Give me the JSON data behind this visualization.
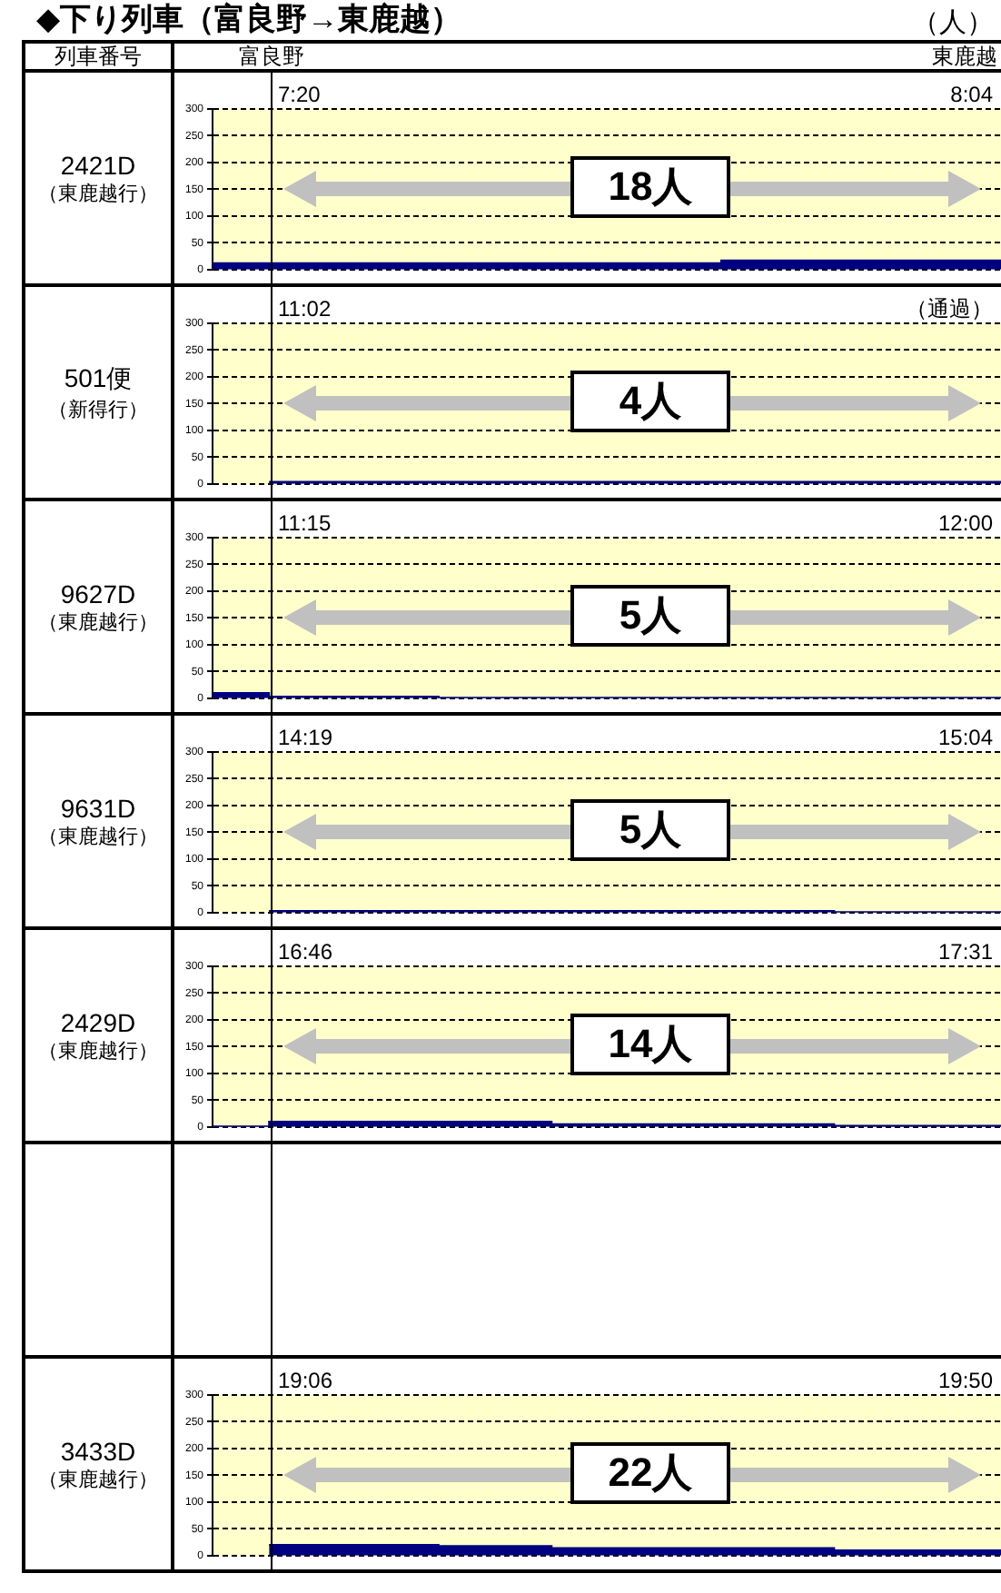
{
  "chart_data": [
    {
      "type": "other",
      "title": "◆下り列車（富良野→東鹿越）",
      "annotations": [
        "（人）",
        "列車番号",
        "富良野",
        "東鹿越"
      ]
    },
    {
      "type": "area",
      "title": "2421D",
      "subtitle": "（東鹿越行）",
      "categories": [
        null,
        null,
        null,
        null,
        null,
        null,
        null,
        null,
        null,
        null,
        null,
        null,
        null,
        null,
        null
      ],
      "series": [
        {
          "color": "#000080",
          "values": [
            12,
            12,
            12,
            12,
            12,
            12,
            12,
            12,
            12,
            17,
            17,
            17,
            17,
            17,
            17
          ]
        }
      ],
      "ylim": [
        0,
        300
      ],
      "yticks": [
        0,
        50,
        100,
        150,
        200,
        250,
        300
      ],
      "grid": "y",
      "tick_labels": "y",
      "annotations": [
        "7:20",
        "8:04",
        "18人"
      ]
    },
    {
      "type": "area",
      "title": "501便",
      "subtitle": "（新得行）",
      "categories": [
        null,
        null,
        null,
        null,
        null,
        null,
        null,
        null,
        null,
        null,
        null,
        null,
        null,
        null,
        null
      ],
      "series": [
        {
          "color": "#000080",
          "values": [
            null,
            4,
            4,
            4,
            4,
            4,
            4,
            4,
            4,
            4,
            4,
            4,
            4,
            4,
            4
          ]
        }
      ],
      "ylim": [
        0,
        300
      ],
      "yticks": [
        0,
        50,
        100,
        150,
        200,
        250,
        300
      ],
      "grid": "y",
      "tick_labels": "y",
      "annotations": [
        "11:02",
        "（通過）",
        "4人"
      ]
    },
    {
      "type": "area",
      "title": "9627D",
      "subtitle": "（東鹿越行）",
      "categories": [
        null,
        null,
        null,
        null,
        null,
        null,
        null,
        null,
        null,
        null,
        null,
        null,
        null,
        null,
        null
      ],
      "series": [
        {
          "color": "#000080",
          "values": [
            10,
            3,
            3,
            3,
            1,
            1,
            1,
            1,
            1,
            1,
            1,
            1,
            1,
            1,
            1
          ]
        }
      ],
      "ylim": [
        0,
        300
      ],
      "yticks": [
        0,
        50,
        100,
        150,
        200,
        250,
        300
      ],
      "grid": "y",
      "tick_labels": "y",
      "annotations": [
        "11:15",
        "12:00",
        "5人"
      ]
    },
    {
      "type": "area",
      "title": "9631D",
      "subtitle": "（東鹿越行）",
      "categories": [
        null,
        null,
        null,
        null,
        null,
        null,
        null,
        null,
        null,
        null,
        null,
        null,
        null,
        null,
        null
      ],
      "series": [
        {
          "color": "#000080",
          "values": [
            null,
            3,
            3,
            3,
            3,
            3,
            3,
            3,
            3,
            3,
            3,
            1,
            1,
            1,
            1
          ]
        }
      ],
      "ylim": [
        0,
        300
      ],
      "yticks": [
        0,
        50,
        100,
        150,
        200,
        250,
        300
      ],
      "grid": "y",
      "tick_labels": "y",
      "annotations": [
        "14:19",
        "15:04",
        "5人"
      ]
    },
    {
      "type": "area",
      "title": "2429D",
      "subtitle": "（東鹿越行）",
      "categories": [
        null,
        null,
        null,
        null,
        null,
        null,
        null,
        null,
        null,
        null,
        null,
        null,
        null,
        null,
        null
      ],
      "series": [
        {
          "color": "#000080",
          "values": [
            1,
            10,
            10,
            10,
            10,
            10,
            5,
            5,
            5,
            5,
            5,
            2,
            2,
            2,
            2
          ]
        }
      ],
      "ylim": [
        0,
        300
      ],
      "yticks": [
        0,
        50,
        100,
        150,
        200,
        250,
        300
      ],
      "grid": "y",
      "tick_labels": "y",
      "annotations": [
        "16:46",
        "17:31",
        "14人"
      ]
    },
    {
      "type": "area",
      "title": "3433D",
      "subtitle": "（東鹿越行）",
      "categories": [
        null,
        null,
        null,
        null,
        null,
        null,
        null,
        null,
        null,
        null,
        null,
        null,
        null,
        null,
        null
      ],
      "series": [
        {
          "color": "#000080",
          "values": [
            null,
            20,
            20,
            20,
            18,
            18,
            14,
            14,
            14,
            14,
            14,
            10,
            10,
            10,
            10
          ]
        }
      ],
      "ylim": [
        0,
        300
      ],
      "yticks": [
        0,
        50,
        100,
        150,
        200,
        250,
        300
      ],
      "grid": "y",
      "tick_labels": "y",
      "annotations": [
        "19:06",
        "19:50",
        "22人"
      ]
    }
  ]
}
